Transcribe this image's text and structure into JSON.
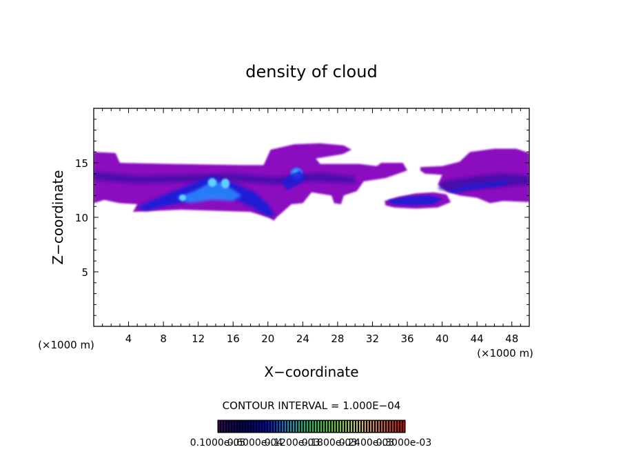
{
  "chart_data": {
    "type": "heatmap",
    "title": "density of cloud",
    "xlabel": "X−coordinate",
    "ylabel": "Z−coordinate",
    "x_unit_label_left": "(×1000 m)",
    "x_unit_label_right": "(×1000 m)",
    "xlim": [
      0,
      50
    ],
    "ylim": [
      0,
      20
    ],
    "x_ticks": [
      4,
      8,
      12,
      16,
      20,
      24,
      28,
      32,
      36,
      40,
      44,
      48
    ],
    "x_tick_labels": [
      "4",
      "8",
      "12",
      "16",
      "20",
      "24",
      "28",
      "32",
      "36",
      "40",
      "44",
      "48"
    ],
    "y_ticks": [
      5,
      10,
      15
    ],
    "y_tick_labels": [
      "5",
      "10",
      "15"
    ],
    "contour_interval_label": "CONTOUR INTERVAL = 1.000E−04",
    "colorbar_labels": [
      "0.1000e-05",
      "0.6000e-04",
      "0.1200e-03",
      "0.1800e-03",
      "0.2400e-03",
      "0.3000e-03"
    ],
    "colorbar_colors": [
      "#4b0082",
      "#000080",
      "#0000ff",
      "#00bfff",
      "#00ff7f",
      "#7fff00",
      "#ffff7f",
      "#ff7f50",
      "#ff0000"
    ],
    "colors": {
      "level_1": "#8a0fbf",
      "level_2": "#3a0fa8",
      "level_3": "#1a1fd8",
      "level_4": "#2a8cff",
      "level_5": "#5fd0ff"
    },
    "cloud_regions": [
      {
        "name": "upper-left-layer",
        "x": [
          0,
          30.5
        ],
        "z": [
          11.3,
          16.0
        ],
        "level": 1
      },
      {
        "name": "upper-right-layer",
        "x": [
          37.5,
          50
        ],
        "z": [
          11.3,
          16.3
        ],
        "level": 1
      },
      {
        "name": "middle-top",
        "x": [
          20,
          29.5
        ],
        "z": [
          14.8,
          16.8
        ],
        "level": 1
      },
      {
        "name": "lower-arc",
        "x": [
          4.5,
          21
        ],
        "z": [
          9.7,
          13.5
        ],
        "level": 3
      },
      {
        "name": "right-lower-band",
        "x": [
          33.5,
          50
        ],
        "z": [
          10.8,
          13.8
        ],
        "level": 2
      }
    ]
  }
}
